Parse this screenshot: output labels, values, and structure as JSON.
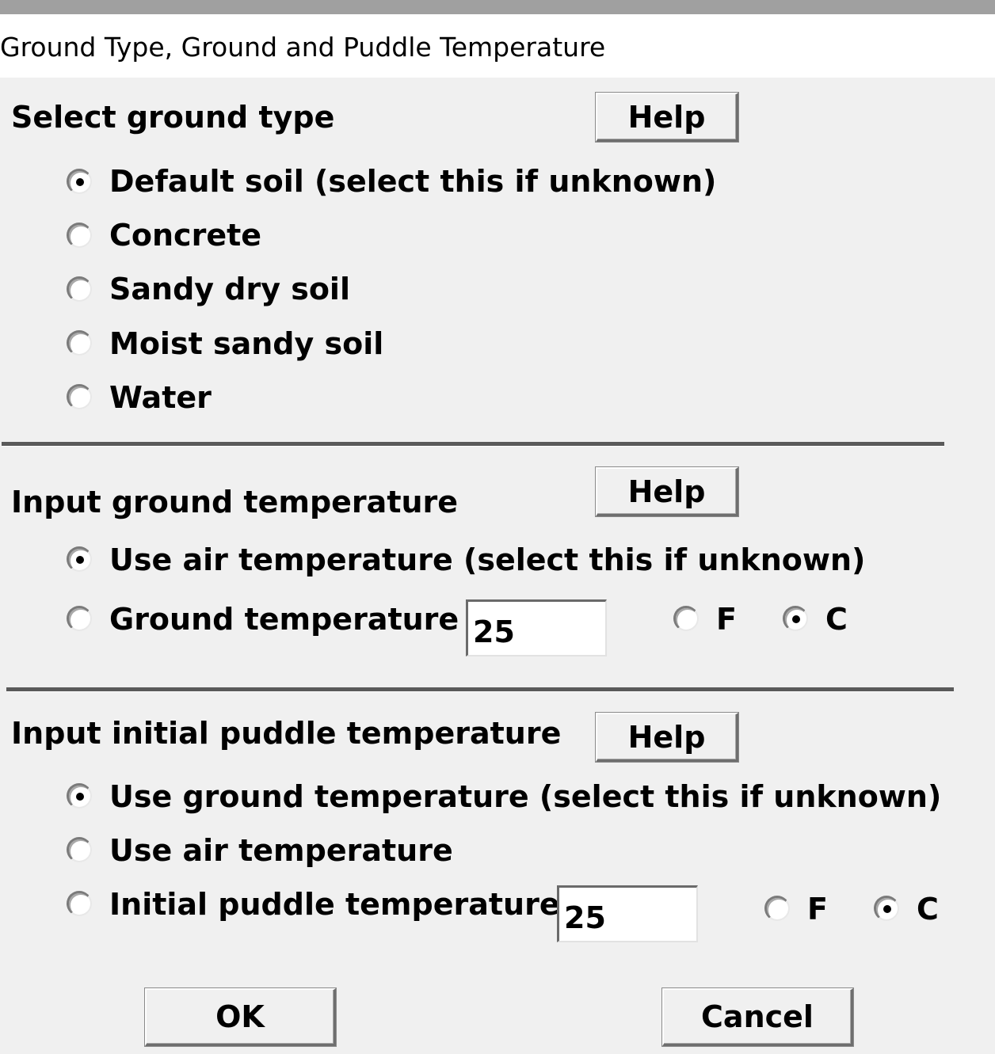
{
  "window": {
    "title": "Ground Type, Ground and Puddle Temperature"
  },
  "ground_type": {
    "heading": "Select ground type",
    "help_label": "Help",
    "options": [
      {
        "label": "Default soil (select this if unknown)",
        "selected": true
      },
      {
        "label": "Concrete",
        "selected": false
      },
      {
        "label": "Sandy dry soil",
        "selected": false
      },
      {
        "label": "Moist sandy soil",
        "selected": false
      },
      {
        "label": "Water",
        "selected": false
      }
    ]
  },
  "ground_temperature": {
    "heading": "Input ground temperature",
    "help_label": "Help",
    "options": [
      {
        "label": "Use air temperature (select this if unknown)",
        "selected": true
      },
      {
        "label": "Ground temperature is",
        "selected": false
      }
    ],
    "value": "25",
    "units": [
      {
        "label": "F",
        "selected": false
      },
      {
        "label": "C",
        "selected": true
      }
    ]
  },
  "puddle_temperature": {
    "heading": "Input initial puddle temperature",
    "help_label": "Help",
    "options": [
      {
        "label": "Use ground temperature (select this if unknown)",
        "selected": true
      },
      {
        "label": "Use air temperature",
        "selected": false
      },
      {
        "label": "Initial puddle temperature is",
        "selected": false
      }
    ],
    "value": "25",
    "units": [
      {
        "label": "F",
        "selected": false
      },
      {
        "label": "C",
        "selected": true
      }
    ]
  },
  "footer": {
    "ok_label": "OK",
    "cancel_label": "Cancel"
  }
}
